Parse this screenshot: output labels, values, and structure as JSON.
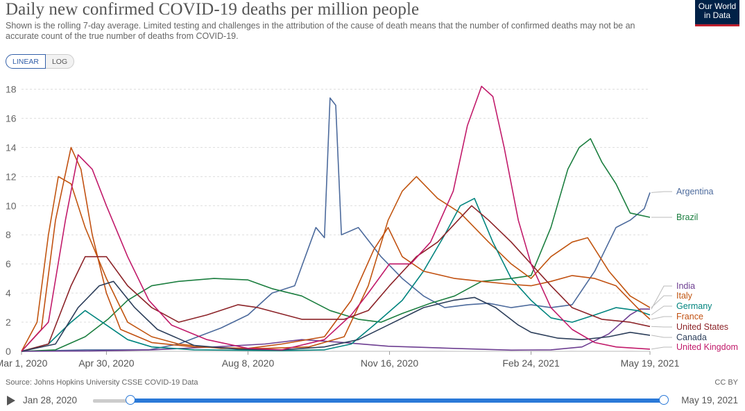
{
  "header": {
    "title": "Daily new confirmed COVID-19 deaths per million people",
    "subtitle": "Shown is the rolling 7-day average. Limited testing and challenges in the attribution of the cause of death means that the number of confirmed deaths may not be an accurate count of the true number of deaths from COVID-19.",
    "logo_line1": "Our World",
    "logo_line2": "in Data"
  },
  "controls": {
    "linear_label": "LINEAR",
    "log_label": "LOG",
    "active": "linear"
  },
  "footer": {
    "source": "Source: Johns Hopkins University CSSE COVID-19 Data",
    "license": "CC BY"
  },
  "timeline": {
    "start_label": "Jan 28, 2020",
    "end_label": "May 19, 2021",
    "start_position": 0.066,
    "end_position": 1.0
  },
  "chart_data": {
    "type": "line",
    "title": "Daily new confirmed COVID-19 deaths per million people",
    "xlabel": "",
    "ylabel": "",
    "xlim": [
      "2020-03-01",
      "2021-05-19"
    ],
    "ylim": [
      0,
      18.5
    ],
    "yticks": [
      0,
      2,
      4,
      6,
      8,
      10,
      12,
      14,
      16,
      18
    ],
    "xticks": [
      "Mar 1, 2020",
      "Apr 30, 2020",
      "Aug 8, 2020",
      "Nov 16, 2020",
      "Feb 24, 2021",
      "May 19, 2021"
    ],
    "grid": "horizontal dashed",
    "legend": "right, end of lines",
    "series": [
      {
        "name": "Argentina",
        "color": "#4c6a9c",
        "points": [
          [
            "2020-03-01",
            0
          ],
          [
            "2020-04-15",
            0.1
          ],
          [
            "2020-05-30",
            0.1
          ],
          [
            "2020-06-20",
            0.5
          ],
          [
            "2020-07-20",
            1.6
          ],
          [
            "2020-08-08",
            2.5
          ],
          [
            "2020-08-25",
            4.0
          ],
          [
            "2020-09-10",
            4.5
          ],
          [
            "2020-09-25",
            8.5
          ],
          [
            "2020-10-01",
            7.8
          ],
          [
            "2020-10-05",
            17.4
          ],
          [
            "2020-10-09",
            16.9
          ],
          [
            "2020-10-13",
            8.0
          ],
          [
            "2020-10-25",
            8.5
          ],
          [
            "2020-11-10",
            6.5
          ],
          [
            "2020-11-25",
            5.0
          ],
          [
            "2020-12-10",
            3.8
          ],
          [
            "2020-12-25",
            3.0
          ],
          [
            "2021-01-10",
            3.2
          ],
          [
            "2021-01-25",
            3.3
          ],
          [
            "2021-02-10",
            3.0
          ],
          [
            "2021-02-24",
            3.2
          ],
          [
            "2021-03-10",
            3.0
          ],
          [
            "2021-03-25",
            3.2
          ],
          [
            "2021-04-10",
            5.5
          ],
          [
            "2021-04-25",
            8.5
          ],
          [
            "2021-05-05",
            9.0
          ],
          [
            "2021-05-15",
            9.8
          ],
          [
            "2021-05-19",
            10.9
          ]
        ]
      },
      {
        "name": "Brazil",
        "color": "#1b7e3f",
        "points": [
          [
            "2020-03-01",
            0
          ],
          [
            "2020-03-25",
            0.1
          ],
          [
            "2020-04-15",
            1.0
          ],
          [
            "2020-05-01",
            2.2
          ],
          [
            "2020-05-15",
            3.5
          ],
          [
            "2020-06-01",
            4.5
          ],
          [
            "2020-06-20",
            4.8
          ],
          [
            "2020-07-15",
            5.0
          ],
          [
            "2020-08-08",
            4.9
          ],
          [
            "2020-08-25",
            4.3
          ],
          [
            "2020-09-15",
            3.8
          ],
          [
            "2020-10-05",
            2.8
          ],
          [
            "2020-10-25",
            2.2
          ],
          [
            "2020-11-10",
            2.0
          ],
          [
            "2020-11-25",
            2.6
          ],
          [
            "2020-12-15",
            3.3
          ],
          [
            "2021-01-01",
            3.8
          ],
          [
            "2021-01-20",
            4.8
          ],
          [
            "2021-02-10",
            5.0
          ],
          [
            "2021-02-24",
            5.2
          ],
          [
            "2021-03-10",
            8.5
          ],
          [
            "2021-03-22",
            12.5
          ],
          [
            "2021-03-30",
            14.0
          ],
          [
            "2021-04-07",
            14.6
          ],
          [
            "2021-04-15",
            13.0
          ],
          [
            "2021-04-25",
            11.5
          ],
          [
            "2021-05-05",
            9.5
          ],
          [
            "2021-05-19",
            9.2
          ]
        ]
      },
      {
        "name": "India",
        "color": "#6d3e91",
        "points": [
          [
            "2020-03-01",
            0
          ],
          [
            "2020-04-15",
            0.02
          ],
          [
            "2020-06-01",
            0.1
          ],
          [
            "2020-07-15",
            0.3
          ],
          [
            "2020-08-20",
            0.5
          ],
          [
            "2020-09-15",
            0.8
          ],
          [
            "2020-10-15",
            0.6
          ],
          [
            "2020-11-15",
            0.35
          ],
          [
            "2020-12-31",
            0.2
          ],
          [
            "2021-02-10",
            0.08
          ],
          [
            "2021-03-10",
            0.1
          ],
          [
            "2021-04-01",
            0.3
          ],
          [
            "2021-04-20",
            1.2
          ],
          [
            "2021-05-05",
            2.5
          ],
          [
            "2021-05-12",
            2.9
          ],
          [
            "2021-05-19",
            2.9
          ]
        ]
      },
      {
        "name": "Italy",
        "color": "#c15510",
        "points": [
          [
            "2020-03-01",
            0
          ],
          [
            "2020-03-12",
            2.0
          ],
          [
            "2020-03-20",
            8.0
          ],
          [
            "2020-03-27",
            12.0
          ],
          [
            "2020-04-05",
            11.5
          ],
          [
            "2020-04-15",
            8.5
          ],
          [
            "2020-04-30",
            5.0
          ],
          [
            "2020-05-15",
            2.0
          ],
          [
            "2020-06-01",
            1.0
          ],
          [
            "2020-06-20",
            0.5
          ],
          [
            "2020-07-20",
            0.2
          ],
          [
            "2020-08-20",
            0.2
          ],
          [
            "2020-09-20",
            0.3
          ],
          [
            "2020-10-15",
            1.0
          ],
          [
            "2020-11-01",
            4.5
          ],
          [
            "2020-11-15",
            9.0
          ],
          [
            "2020-11-25",
            11.0
          ],
          [
            "2020-12-05",
            12.0
          ],
          [
            "2020-12-20",
            10.5
          ],
          [
            "2021-01-05",
            9.5
          ],
          [
            "2021-01-25",
            7.5
          ],
          [
            "2021-02-10",
            6.0
          ],
          [
            "2021-02-24",
            5.0
          ],
          [
            "2021-03-10",
            6.5
          ],
          [
            "2021-03-25",
            7.5
          ],
          [
            "2021-04-05",
            7.8
          ],
          [
            "2021-04-20",
            5.5
          ],
          [
            "2021-05-05",
            3.8
          ],
          [
            "2021-05-19",
            3.0
          ]
        ]
      },
      {
        "name": "Germany",
        "color": "#00847e",
        "points": [
          [
            "2020-03-01",
            0
          ],
          [
            "2020-03-20",
            0.5
          ],
          [
            "2020-04-05",
            2.0
          ],
          [
            "2020-04-15",
            2.8
          ],
          [
            "2020-04-30",
            1.8
          ],
          [
            "2020-05-15",
            0.8
          ],
          [
            "2020-06-01",
            0.3
          ],
          [
            "2020-07-01",
            0.1
          ],
          [
            "2020-09-01",
            0.05
          ],
          [
            "2020-10-01",
            0.1
          ],
          [
            "2020-10-20",
            0.5
          ],
          [
            "2020-11-05",
            1.8
          ],
          [
            "2020-11-25",
            3.5
          ],
          [
            "2020-12-10",
            5.5
          ],
          [
            "2020-12-25",
            8.0
          ],
          [
            "2021-01-05",
            10.0
          ],
          [
            "2021-01-15",
            10.5
          ],
          [
            "2021-01-28",
            7.5
          ],
          [
            "2021-02-10",
            5.0
          ],
          [
            "2021-02-24",
            3.5
          ],
          [
            "2021-03-10",
            2.3
          ],
          [
            "2021-03-25",
            2.0
          ],
          [
            "2021-04-10",
            2.5
          ],
          [
            "2021-04-25",
            3.0
          ],
          [
            "2021-05-10",
            2.8
          ],
          [
            "2021-05-19",
            2.5
          ]
        ]
      },
      {
        "name": "France",
        "color": "#c15010",
        "points": [
          [
            "2020-03-01",
            0
          ],
          [
            "2020-03-15",
            1.5
          ],
          [
            "2020-03-25",
            9.0
          ],
          [
            "2020-04-05",
            14.0
          ],
          [
            "2020-04-12",
            12.5
          ],
          [
            "2020-04-20",
            8.0
          ],
          [
            "2020-04-30",
            4.0
          ],
          [
            "2020-05-10",
            1.5
          ],
          [
            "2020-06-01",
            0.6
          ],
          [
            "2020-07-01",
            0.3
          ],
          [
            "2020-08-08",
            0.2
          ],
          [
            "2020-09-01",
            0.5
          ],
          [
            "2020-10-01",
            1.0
          ],
          [
            "2020-10-20",
            3.5
          ],
          [
            "2020-11-05",
            7.0
          ],
          [
            "2020-11-15",
            8.5
          ],
          [
            "2020-11-25",
            6.5
          ],
          [
            "2020-12-10",
            5.5
          ],
          [
            "2021-01-01",
            5.0
          ],
          [
            "2021-01-20",
            4.8
          ],
          [
            "2021-02-10",
            4.6
          ],
          [
            "2021-02-24",
            4.5
          ],
          [
            "2021-03-10",
            4.8
          ],
          [
            "2021-03-25",
            5.2
          ],
          [
            "2021-04-10",
            5.0
          ],
          [
            "2021-04-25",
            4.5
          ],
          [
            "2021-05-10",
            3.0
          ],
          [
            "2021-05-19",
            2.2
          ]
        ]
      },
      {
        "name": "United States",
        "color": "#8c2328",
        "points": [
          [
            "2020-03-01",
            0
          ],
          [
            "2020-03-20",
            0.5
          ],
          [
            "2020-04-05",
            4.5
          ],
          [
            "2020-04-15",
            6.5
          ],
          [
            "2020-04-30",
            6.5
          ],
          [
            "2020-05-15",
            4.5
          ],
          [
            "2020-06-01",
            3.0
          ],
          [
            "2020-06-20",
            2.0
          ],
          [
            "2020-07-10",
            2.5
          ],
          [
            "2020-08-01",
            3.2
          ],
          [
            "2020-08-15",
            3.0
          ],
          [
            "2020-09-15",
            2.2
          ],
          [
            "2020-10-15",
            2.2
          ],
          [
            "2020-11-01",
            2.8
          ],
          [
            "2020-11-16",
            4.5
          ],
          [
            "2020-12-05",
            6.5
          ],
          [
            "2020-12-20",
            7.5
          ],
          [
            "2021-01-13",
            10.0
          ],
          [
            "2021-01-25",
            9.0
          ],
          [
            "2021-02-10",
            7.5
          ],
          [
            "2021-02-24",
            6.0
          ],
          [
            "2021-03-10",
            4.5
          ],
          [
            "2021-03-25",
            3.0
          ],
          [
            "2021-04-15",
            2.2
          ],
          [
            "2021-05-05",
            2.0
          ],
          [
            "2021-05-19",
            1.7
          ]
        ]
      },
      {
        "name": "Canada",
        "color": "#2c3e5a",
        "points": [
          [
            "2020-03-01",
            0
          ],
          [
            "2020-03-25",
            0.5
          ],
          [
            "2020-04-10",
            3.0
          ],
          [
            "2020-04-25",
            4.5
          ],
          [
            "2020-05-05",
            4.8
          ],
          [
            "2020-05-20",
            3.0
          ],
          [
            "2020-06-05",
            1.5
          ],
          [
            "2020-07-01",
            0.4
          ],
          [
            "2020-08-01",
            0.15
          ],
          [
            "2020-09-01",
            0.1
          ],
          [
            "2020-10-01",
            0.3
          ],
          [
            "2020-10-25",
            0.8
          ],
          [
            "2020-11-15",
            1.8
          ],
          [
            "2020-12-10",
            3.0
          ],
          [
            "2020-12-31",
            3.5
          ],
          [
            "2021-01-15",
            3.7
          ],
          [
            "2021-01-30",
            3.0
          ],
          [
            "2021-02-15",
            1.8
          ],
          [
            "2021-02-24",
            1.3
          ],
          [
            "2021-03-15",
            0.9
          ],
          [
            "2021-04-01",
            0.8
          ],
          [
            "2021-04-20",
            1.0
          ],
          [
            "2021-05-05",
            1.3
          ],
          [
            "2021-05-19",
            1.1
          ]
        ]
      },
      {
        "name": "United Kingdom",
        "color": "#c11a6a",
        "points": [
          [
            "2020-03-01",
            0
          ],
          [
            "2020-03-20",
            2.0
          ],
          [
            "2020-04-01",
            9.0
          ],
          [
            "2020-04-10",
            13.5
          ],
          [
            "2020-04-20",
            12.5
          ],
          [
            "2020-04-30",
            10.0
          ],
          [
            "2020-05-15",
            6.5
          ],
          [
            "2020-05-30",
            3.5
          ],
          [
            "2020-06-15",
            1.8
          ],
          [
            "2020-07-10",
            0.8
          ],
          [
            "2020-08-08",
            0.2
          ],
          [
            "2020-09-01",
            0.1
          ],
          [
            "2020-10-01",
            0.8
          ],
          [
            "2020-10-20",
            2.5
          ],
          [
            "2020-11-01",
            4.0
          ],
          [
            "2020-11-16",
            6.0
          ],
          [
            "2020-12-01",
            6.0
          ],
          [
            "2020-12-15",
            7.5
          ],
          [
            "2020-12-31",
            11.0
          ],
          [
            "2021-01-10",
            15.5
          ],
          [
            "2021-01-20",
            18.2
          ],
          [
            "2021-01-28",
            17.5
          ],
          [
            "2021-02-05",
            14.0
          ],
          [
            "2021-02-15",
            9.0
          ],
          [
            "2021-02-24",
            6.0
          ],
          [
            "2021-03-10",
            3.0
          ],
          [
            "2021-03-25",
            1.5
          ],
          [
            "2021-04-10",
            0.6
          ],
          [
            "2021-04-25",
            0.3
          ],
          [
            "2021-05-19",
            0.15
          ]
        ]
      }
    ]
  }
}
